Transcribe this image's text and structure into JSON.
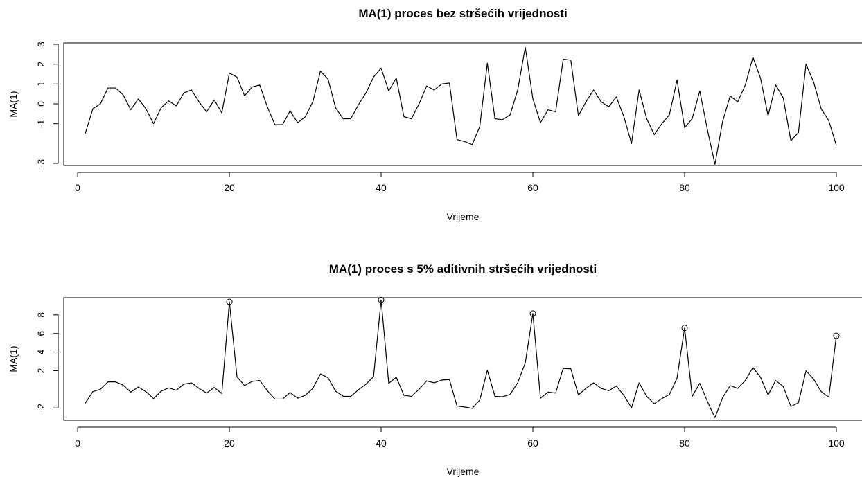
{
  "chart_data": [
    {
      "type": "line",
      "title": "MA(1) proces bez stršećih vrijednosti",
      "xlabel": "Vrijeme",
      "ylabel": "MA(1)",
      "xlim": [
        1,
        100
      ],
      "ylim": [
        -3,
        3
      ],
      "x_ticks": [
        0,
        20,
        40,
        60,
        80,
        100
      ],
      "y_ticks": [
        -3,
        -1,
        0,
        1,
        2,
        3
      ],
      "x_tick_labels": [
        "0",
        "20",
        "40",
        "60",
        "80",
        "100"
      ],
      "y_tick_labels": [
        "-3",
        "-1",
        "0",
        "1",
        "2",
        "3"
      ],
      "grid": false,
      "legend": "none",
      "line_color": "#000000",
      "x": [
        1,
        2,
        3,
        4,
        5,
        6,
        7,
        8,
        9,
        10,
        11,
        12,
        13,
        14,
        15,
        16,
        17,
        18,
        19,
        20,
        21,
        22,
        23,
        24,
        25,
        26,
        27,
        28,
        29,
        30,
        31,
        32,
        33,
        34,
        35,
        36,
        37,
        38,
        39,
        40,
        41,
        42,
        43,
        44,
        45,
        46,
        47,
        48,
        49,
        50,
        51,
        52,
        53,
        54,
        55,
        56,
        57,
        58,
        59,
        60,
        61,
        62,
        63,
        64,
        65,
        66,
        67,
        68,
        69,
        70,
        71,
        72,
        73,
        74,
        75,
        76,
        77,
        78,
        79,
        80,
        81,
        82,
        83,
        84,
        85,
        86,
        87,
        88,
        89,
        90,
        91,
        92,
        93,
        94,
        95,
        96,
        97,
        98,
        99,
        100
      ],
      "values": [
        -1.5,
        -0.25,
        0.0,
        0.8,
        0.8,
        0.45,
        -0.3,
        0.25,
        -0.25,
        -1.0,
        -0.2,
        0.15,
        -0.1,
        0.55,
        0.7,
        0.1,
        -0.4,
        0.2,
        -0.45,
        1.55,
        1.35,
        0.4,
        0.85,
        0.95,
        -0.15,
        -1.05,
        -1.05,
        -0.35,
        -0.95,
        -0.65,
        0.1,
        1.65,
        1.25,
        -0.2,
        -0.75,
        -0.75,
        -0.05,
        0.55,
        1.35,
        1.8,
        0.65,
        1.3,
        -0.65,
        -0.75,
        0.0,
        0.9,
        0.7,
        1.0,
        1.05,
        -1.8,
        -1.9,
        -2.05,
        -1.15,
        2.05,
        -0.75,
        -0.8,
        -0.55,
        0.7,
        2.85,
        0.25,
        -0.95,
        -0.3,
        -0.4,
        2.25,
        2.2,
        -0.6,
        0.1,
        0.7,
        0.1,
        -0.15,
        0.35,
        -0.65,
        -2.0,
        0.7,
        -0.75,
        -1.55,
        -1.0,
        -0.55,
        1.2,
        -1.2,
        -0.75,
        0.65,
        -1.3,
        -3.05,
        -0.9,
        0.4,
        0.1,
        0.95,
        2.35,
        1.3,
        -0.6,
        0.95,
        0.3,
        -1.85,
        -1.45,
        2.0,
        1.1,
        -0.25,
        -0.85,
        -2.1
      ]
    },
    {
      "type": "line",
      "title": "MA(1) proces s 5% aditivnih stršećih vrijednosti",
      "xlabel": "Vrijeme",
      "ylabel": "MA(1)",
      "xlim": [
        1,
        100
      ],
      "ylim": [
        -3.1,
        9.7
      ],
      "x_ticks": [
        0,
        20,
        40,
        60,
        80,
        100
      ],
      "y_ticks": [
        -2,
        2,
        4,
        6,
        8
      ],
      "x_tick_labels": [
        "0",
        "20",
        "40",
        "60",
        "80",
        "100"
      ],
      "y_tick_labels": [
        "-2",
        "2",
        "4",
        "6",
        "8"
      ],
      "grid": false,
      "legend": "none",
      "line_color": "#000000",
      "outliers": [
        {
          "x": 20,
          "y": 9.4
        },
        {
          "x": 40,
          "y": 9.6
        },
        {
          "x": 60,
          "y": 8.15
        },
        {
          "x": 80,
          "y": 6.6
        },
        {
          "x": 100,
          "y": 5.75
        }
      ],
      "x": [
        1,
        2,
        3,
        4,
        5,
        6,
        7,
        8,
        9,
        10,
        11,
        12,
        13,
        14,
        15,
        16,
        17,
        18,
        19,
        20,
        21,
        22,
        23,
        24,
        25,
        26,
        27,
        28,
        29,
        30,
        31,
        32,
        33,
        34,
        35,
        36,
        37,
        38,
        39,
        40,
        41,
        42,
        43,
        44,
        45,
        46,
        47,
        48,
        49,
        50,
        51,
        52,
        53,
        54,
        55,
        56,
        57,
        58,
        59,
        60,
        61,
        62,
        63,
        64,
        65,
        66,
        67,
        68,
        69,
        70,
        71,
        72,
        73,
        74,
        75,
        76,
        77,
        78,
        79,
        80,
        81,
        82,
        83,
        84,
        85,
        86,
        87,
        88,
        89,
        90,
        91,
        92,
        93,
        94,
        95,
        96,
        97,
        98,
        99,
        100
      ],
      "values": [
        -1.5,
        -0.25,
        0.0,
        0.8,
        0.8,
        0.45,
        -0.3,
        0.25,
        -0.25,
        -1.0,
        -0.2,
        0.15,
        -0.1,
        0.55,
        0.7,
        0.1,
        -0.4,
        0.2,
        -0.45,
        9.4,
        1.35,
        0.4,
        0.85,
        0.95,
        -0.15,
        -1.05,
        -1.05,
        -0.35,
        -0.95,
        -0.65,
        0.1,
        1.65,
        1.25,
        -0.2,
        -0.75,
        -0.75,
        -0.05,
        0.55,
        1.35,
        9.6,
        0.65,
        1.3,
        -0.65,
        -0.75,
        0.0,
        0.9,
        0.7,
        1.0,
        1.05,
        -1.8,
        -1.9,
        -2.05,
        -1.15,
        2.05,
        -0.75,
        -0.8,
        -0.55,
        0.7,
        2.85,
        8.15,
        -0.95,
        -0.3,
        -0.4,
        2.25,
        2.2,
        -0.6,
        0.1,
        0.7,
        0.1,
        -0.15,
        0.35,
        -0.65,
        -2.0,
        0.7,
        -0.75,
        -1.55,
        -1.0,
        -0.55,
        1.2,
        6.6,
        -0.75,
        0.65,
        -1.3,
        -3.05,
        -0.9,
        0.4,
        0.1,
        0.95,
        2.35,
        1.3,
        -0.6,
        0.95,
        0.3,
        -1.85,
        -1.45,
        2.0,
        1.1,
        -0.25,
        -0.85,
        5.75
      ]
    }
  ]
}
